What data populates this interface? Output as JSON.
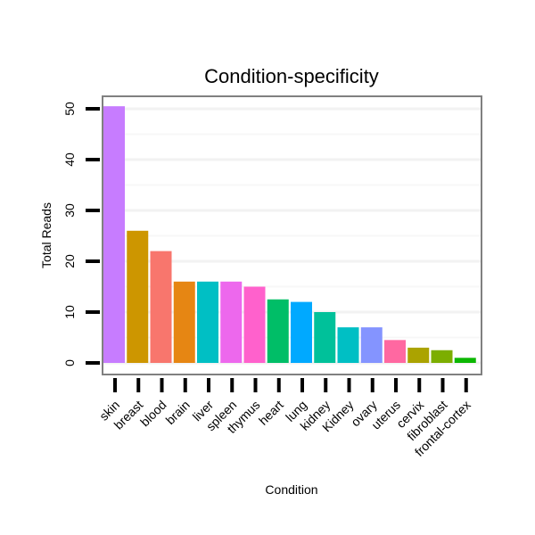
{
  "chart_data": {
    "type": "bar",
    "title": "Condition-specificity",
    "xlabel": "Condition",
    "ylabel": "Total Reads",
    "ylim": [
      -2,
      52
    ],
    "yticks": [
      0,
      10,
      20,
      30,
      40,
      50
    ],
    "grid": true,
    "categories": [
      "skin",
      "breast",
      "blood",
      "brain",
      "liver",
      "spleen",
      "thymus",
      "heart",
      "lung",
      "kidney",
      "Kidney",
      "ovary",
      "uterus",
      "cervix",
      "fibroblast",
      "frontal-cortex"
    ],
    "values": [
      50.5,
      26,
      22,
      16,
      16,
      16,
      15,
      12.5,
      12,
      10,
      7,
      7,
      4.5,
      3,
      2.5,
      1
    ],
    "colors": [
      "#c77cff",
      "#cd9600",
      "#f8766d",
      "#e68613",
      "#00bfc4",
      "#ed68ed",
      "#ff61cc",
      "#00be67",
      "#00a9ff",
      "#00c19a",
      "#00bfc4",
      "#8494ff",
      "#ff68a1",
      "#aba300",
      "#7cae00",
      "#0cb702"
    ]
  }
}
